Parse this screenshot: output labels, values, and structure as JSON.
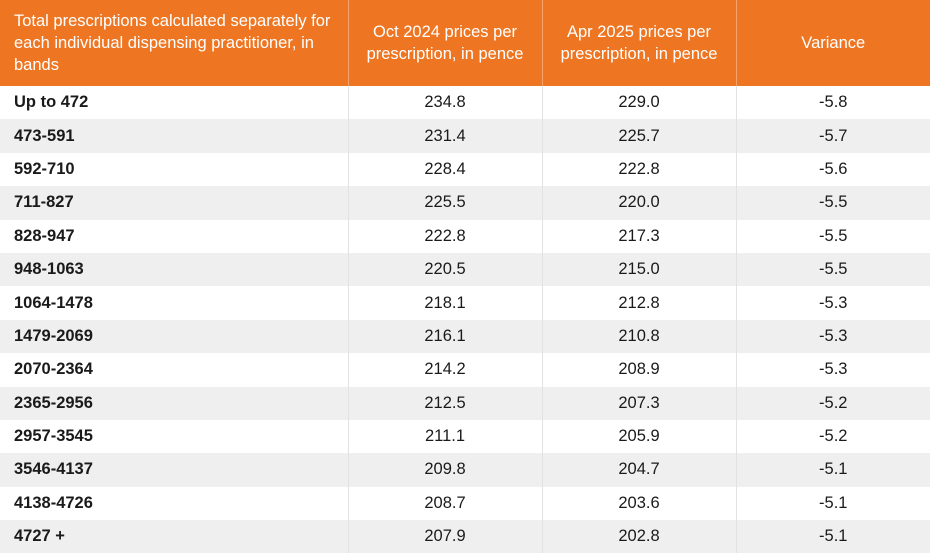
{
  "header": {
    "col1": "Total prescriptions calculated separately for each individual dispensing practitioner, in bands",
    "col2": "Oct 2024 prices per prescription, in pence",
    "col3": "Apr 2025 prices per prescription, in pence",
    "col4": "Variance"
  },
  "rows": [
    {
      "band": "Up to 472",
      "oct": "234.8",
      "apr": "229.0",
      "var": "-5.8"
    },
    {
      "band": "473-591",
      "oct": "231.4",
      "apr": "225.7",
      "var": "-5.7"
    },
    {
      "band": "592-710",
      "oct": "228.4",
      "apr": "222.8",
      "var": "-5.6"
    },
    {
      "band": "711-827",
      "oct": "225.5",
      "apr": "220.0",
      "var": "-5.5"
    },
    {
      "band": "828-947",
      "oct": "222.8",
      "apr": "217.3",
      "var": "-5.5"
    },
    {
      "band": "948-1063",
      "oct": "220.5",
      "apr": "215.0",
      "var": "-5.5"
    },
    {
      "band": "1064-1478",
      "oct": "218.1",
      "apr": "212.8",
      "var": "-5.3"
    },
    {
      "band": "1479-2069",
      "oct": "216.1",
      "apr": "210.8",
      "var": "-5.3"
    },
    {
      "band": "2070-2364",
      "oct": "214.2",
      "apr": "208.9",
      "var": "-5.3"
    },
    {
      "band": "2365-2956",
      "oct": "212.5",
      "apr": "207.3",
      "var": "-5.2"
    },
    {
      "band": "2957-3545",
      "oct": "211.1",
      "apr": "205.9",
      "var": "-5.2"
    },
    {
      "band": "3546-4137",
      "oct": "209.8",
      "apr": "204.7",
      "var": "-5.1"
    },
    {
      "band": "4138-4726",
      "oct": "208.7",
      "apr": "203.6",
      "var": "-5.1"
    },
    {
      "band": "4727 +",
      "oct": "207.9",
      "apr": "202.8",
      "var": "-5.1"
    }
  ],
  "colors": {
    "header_bg": "#ee7623",
    "header_text": "#ffffff",
    "stripe": "#efefef"
  }
}
